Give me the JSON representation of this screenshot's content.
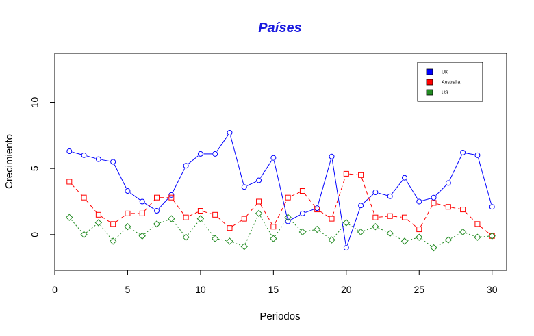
{
  "chart_data": {
    "type": "line",
    "title": "Países",
    "xlabel": "Periodos",
    "ylabel": "Crecimiento",
    "xlim": [
      0,
      31
    ],
    "ylim": [
      -2.7,
      13.7
    ],
    "x_ticks": [
      0,
      5,
      10,
      15,
      20,
      25,
      30
    ],
    "y_ticks": [
      0,
      5,
      10
    ],
    "grid": false,
    "legend_position": "top-right",
    "x": [
      1,
      2,
      3,
      4,
      5,
      6,
      7,
      8,
      9,
      10,
      11,
      12,
      13,
      14,
      15,
      16,
      17,
      18,
      19,
      20,
      21,
      22,
      23,
      24,
      25,
      26,
      27,
      28,
      29,
      30
    ],
    "series": [
      {
        "name": "UK",
        "color": "#0000ff",
        "marker": "circle",
        "line_style": "solid",
        "values": [
          6.3,
          6.0,
          5.7,
          5.5,
          3.3,
          2.5,
          1.8,
          3.0,
          5.2,
          6.1,
          6.1,
          7.7,
          3.6,
          4.1,
          5.8,
          1.0,
          1.6,
          2.0,
          5.9,
          -1.0,
          2.2,
          3.2,
          2.9,
          4.3,
          2.5,
          2.8,
          3.9,
          6.2,
          6.0,
          2.1
        ]
      },
      {
        "name": "Australia",
        "color": "#ff0000",
        "marker": "square",
        "line_style": "dashed",
        "values": [
          4.0,
          2.8,
          1.5,
          0.8,
          1.6,
          1.6,
          2.8,
          2.8,
          1.3,
          1.8,
          1.5,
          0.5,
          1.2,
          2.5,
          0.6,
          2.8,
          3.3,
          1.9,
          1.2,
          4.6,
          4.5,
          1.3,
          1.4,
          1.3,
          0.4,
          2.4,
          2.1,
          1.9,
          0.8,
          -0.1
        ]
      },
      {
        "name": "US",
        "color": "#228b22",
        "marker": "diamond",
        "line_style": "dotted",
        "values": [
          1.3,
          0.0,
          0.9,
          -0.5,
          0.6,
          -0.1,
          0.8,
          1.2,
          -0.2,
          1.2,
          -0.3,
          -0.5,
          -0.9,
          1.6,
          -0.3,
          1.3,
          0.2,
          0.4,
          -0.4,
          0.9,
          0.2,
          0.6,
          0.1,
          -0.5,
          -0.2,
          -1.0,
          -0.4,
          0.2,
          -0.2,
          -0.1
        ]
      }
    ]
  }
}
